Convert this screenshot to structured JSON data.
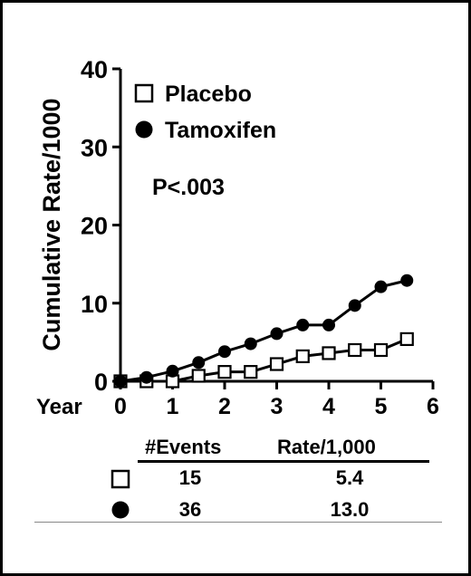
{
  "chart_data": {
    "type": "line",
    "title": "",
    "xlabel": "Year",
    "ylabel": "Cumulative Rate/1000",
    "xlim": [
      0,
      6
    ],
    "ylim": [
      0,
      40
    ],
    "xticks": [
      0,
      1,
      2,
      3,
      4,
      5,
      6
    ],
    "yticks": [
      0,
      10,
      20,
      30,
      40
    ],
    "grid": false,
    "legend_position": "top-left",
    "annotation": "P<.003",
    "series": [
      {
        "name": "Placebo",
        "marker": "open-square",
        "color": "#000000",
        "x": [
          0,
          0.5,
          1,
          1.5,
          2,
          2.5,
          3,
          3.5,
          4,
          4.5,
          5,
          5.5
        ],
        "y": [
          0,
          0,
          0,
          0.7,
          1.2,
          1.2,
          2.2,
          3.2,
          3.6,
          4.0,
          4.0,
          5.4
        ]
      },
      {
        "name": "Tamoxifen",
        "marker": "filled-circle",
        "color": "#000000",
        "x": [
          0,
          0.5,
          1,
          1.5,
          2,
          2.5,
          3,
          3.5,
          4,
          4.5,
          5,
          5.5
        ],
        "y": [
          0,
          0.5,
          1.3,
          2.4,
          3.8,
          4.8,
          6.1,
          7.2,
          7.2,
          9.7,
          12.1,
          12.9
        ]
      }
    ]
  },
  "table": {
    "headers": [
      "#Events",
      "Rate/1,000"
    ],
    "rows": [
      {
        "marker": "open-square",
        "events": "15",
        "rate": "5.4"
      },
      {
        "marker": "filled-circle",
        "events": "36",
        "rate": "13.0"
      }
    ]
  }
}
